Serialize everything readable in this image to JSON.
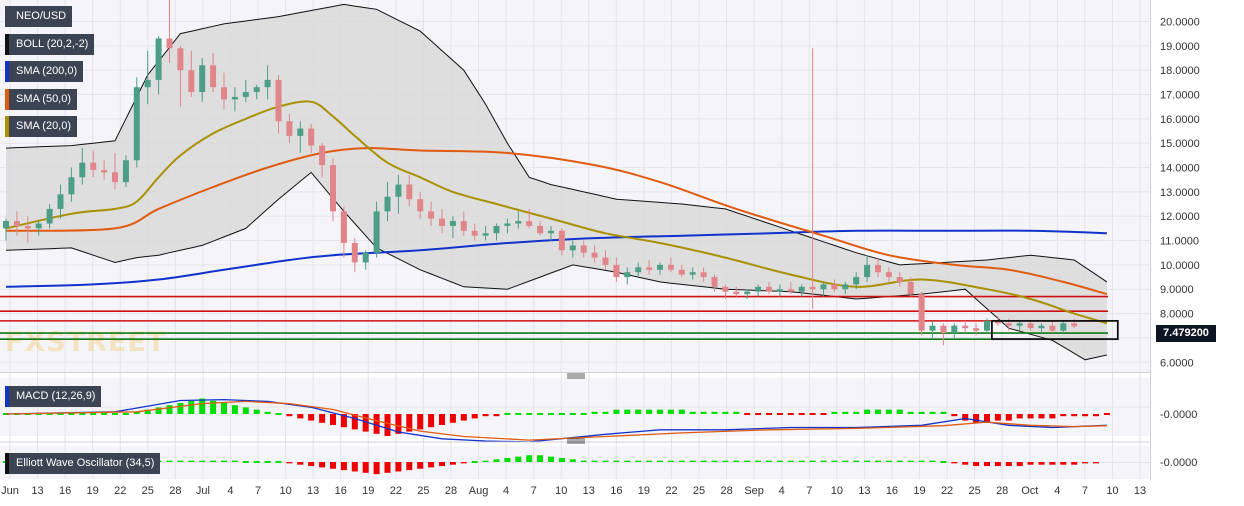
{
  "chart_data": {
    "type": "candlestick",
    "symbol": "NEO/USD",
    "watermark": "FXSTREET",
    "last_price_label": "7.479200",
    "price_axis": {
      "min": 5.6,
      "max": 20.8,
      "ticks": [
        "20.0000",
        "19.0000",
        "18.0000",
        "17.0000",
        "16.0000",
        "15.0000",
        "14.0000",
        "13.0000",
        "12.0000",
        "11.0000",
        "10.0000",
        "9.0000",
        "8.0000",
        "7.0000",
        "6.0000"
      ]
    },
    "time_axis_labels": [
      "Jun",
      "13",
      "16",
      "19",
      "22",
      "25",
      "28",
      "Jul",
      "4",
      "7",
      "10",
      "13",
      "16",
      "19",
      "22",
      "25",
      "28",
      "Aug",
      "4",
      "7",
      "10",
      "13",
      "16",
      "19",
      "22",
      "25",
      "28",
      "Sep",
      "4",
      "7",
      "10",
      "13",
      "16",
      "19",
      "22",
      "25",
      "28",
      "Oct",
      "4",
      "7",
      "10",
      "13"
    ],
    "candles": [
      [
        11.5,
        11.9,
        11.0,
        11.8
      ],
      [
        11.8,
        12.2,
        11.2,
        11.6
      ],
      [
        11.6,
        12.0,
        10.9,
        11.5
      ],
      [
        11.5,
        11.8,
        11.2,
        11.7
      ],
      [
        11.7,
        12.5,
        11.5,
        12.3
      ],
      [
        12.3,
        13.3,
        11.9,
        12.9
      ],
      [
        12.9,
        14.0,
        12.6,
        13.6
      ],
      [
        13.6,
        14.8,
        13.3,
        14.2
      ],
      [
        14.2,
        14.7,
        13.6,
        13.9
      ],
      [
        13.9,
        14.3,
        13.5,
        13.8
      ],
      [
        13.8,
        14.6,
        13.1,
        13.4
      ],
      [
        13.4,
        14.5,
        13.2,
        14.3
      ],
      [
        14.3,
        17.7,
        14.0,
        17.3
      ],
      [
        17.3,
        18.8,
        16.6,
        17.6
      ],
      [
        17.6,
        19.4,
        17.0,
        19.3
      ],
      [
        19.3,
        20.9,
        18.3,
        18.9
      ],
      [
        18.9,
        19.0,
        16.5,
        18.0
      ],
      [
        18.0,
        18.8,
        16.9,
        17.1
      ],
      [
        17.1,
        18.5,
        16.7,
        18.2
      ],
      [
        18.2,
        18.7,
        17.1,
        17.3
      ],
      [
        17.3,
        17.9,
        16.4,
        16.8
      ],
      [
        16.8,
        17.3,
        16.3,
        16.9
      ],
      [
        16.9,
        17.6,
        16.7,
        17.1
      ],
      [
        17.1,
        17.4,
        16.8,
        17.3
      ],
      [
        17.3,
        18.2,
        16.8,
        17.6
      ],
      [
        17.6,
        17.8,
        15.4,
        15.9
      ],
      [
        15.9,
        16.2,
        15.0,
        15.3
      ],
      [
        15.3,
        15.9,
        14.6,
        15.6
      ],
      [
        15.6,
        15.8,
        14.6,
        14.9
      ],
      [
        14.9,
        15.0,
        13.6,
        14.1
      ],
      [
        14.1,
        14.4,
        11.8,
        12.2
      ],
      [
        12.2,
        12.4,
        10.3,
        10.9
      ],
      [
        10.9,
        11.1,
        9.7,
        10.1
      ],
      [
        10.1,
        10.6,
        9.8,
        10.5
      ],
      [
        10.5,
        12.6,
        10.3,
        12.2
      ],
      [
        12.2,
        13.4,
        11.8,
        12.8
      ],
      [
        12.8,
        13.7,
        12.1,
        13.3
      ],
      [
        13.3,
        13.7,
        12.4,
        12.7
      ],
      [
        12.7,
        13.0,
        11.9,
        12.2
      ],
      [
        12.2,
        12.6,
        11.6,
        11.9
      ],
      [
        11.9,
        12.3,
        11.3,
        11.6
      ],
      [
        11.6,
        12.0,
        11.1,
        11.8
      ],
      [
        11.8,
        12.2,
        11.2,
        11.4
      ],
      [
        11.4,
        11.7,
        11.0,
        11.2
      ],
      [
        11.2,
        11.6,
        11.0,
        11.3
      ],
      [
        11.3,
        11.7,
        11.0,
        11.6
      ],
      [
        11.6,
        11.9,
        11.3,
        11.7
      ],
      [
        11.7,
        12.2,
        11.5,
        11.8
      ],
      [
        11.8,
        12.3,
        11.5,
        11.6
      ],
      [
        11.6,
        11.8,
        11.2,
        11.3
      ],
      [
        11.3,
        11.6,
        11.0,
        11.4
      ],
      [
        11.4,
        11.5,
        10.4,
        10.6
      ],
      [
        10.6,
        11.0,
        10.3,
        10.8
      ],
      [
        10.8,
        11.0,
        10.3,
        10.5
      ],
      [
        10.5,
        10.8,
        10.1,
        10.3
      ],
      [
        10.3,
        10.6,
        9.8,
        10.0
      ],
      [
        10.0,
        10.3,
        9.3,
        9.5
      ],
      [
        9.5,
        9.9,
        9.2,
        9.7
      ],
      [
        9.7,
        10.1,
        9.5,
        9.9
      ],
      [
        9.9,
        10.2,
        9.6,
        9.8
      ],
      [
        9.8,
        10.1,
        9.6,
        10.0
      ],
      [
        10.0,
        10.3,
        9.7,
        9.8
      ],
      [
        9.8,
        10.0,
        9.5,
        9.6
      ],
      [
        9.6,
        9.9,
        9.4,
        9.7
      ],
      [
        9.7,
        9.9,
        9.3,
        9.5
      ],
      [
        9.5,
        9.6,
        8.9,
        9.1
      ],
      [
        9.1,
        9.2,
        8.6,
        8.9
      ],
      [
        8.9,
        9.1,
        8.7,
        8.8
      ],
      [
        8.8,
        9.0,
        8.6,
        8.9
      ],
      [
        8.9,
        9.2,
        8.7,
        9.1
      ],
      [
        9.1,
        9.3,
        8.8,
        8.9
      ],
      [
        8.9,
        9.2,
        8.7,
        9.0
      ],
      [
        9.0,
        9.3,
        8.8,
        8.9
      ],
      [
        8.9,
        9.2,
        8.7,
        9.1
      ],
      [
        9.1,
        18.9,
        8.2,
        9.0
      ],
      [
        9.0,
        9.3,
        8.7,
        9.2
      ],
      [
        9.2,
        9.4,
        8.9,
        9.0
      ],
      [
        9.0,
        9.3,
        8.8,
        9.2
      ],
      [
        9.2,
        9.7,
        9.0,
        9.5
      ],
      [
        9.5,
        10.4,
        9.3,
        10.0
      ],
      [
        10.0,
        10.3,
        9.5,
        9.7
      ],
      [
        9.7,
        9.9,
        9.3,
        9.5
      ],
      [
        9.5,
        9.7,
        9.1,
        9.3
      ],
      [
        9.3,
        9.5,
        8.7,
        8.8
      ],
      [
        8.8,
        8.9,
        7.1,
        7.3
      ],
      [
        7.3,
        7.7,
        7.0,
        7.5
      ],
      [
        7.5,
        7.6,
        6.7,
        7.2
      ],
      [
        7.2,
        7.6,
        7.0,
        7.5
      ],
      [
        7.5,
        7.7,
        7.2,
        7.4
      ],
      [
        7.4,
        7.6,
        7.1,
        7.3
      ],
      [
        7.3,
        7.8,
        7.2,
        7.7
      ],
      [
        7.7,
        7.9,
        7.5,
        7.6
      ],
      [
        7.6,
        7.8,
        7.3,
        7.5
      ],
      [
        7.5,
        7.7,
        7.3,
        7.6
      ],
      [
        7.6,
        7.7,
        7.3,
        7.4
      ],
      [
        7.4,
        7.6,
        7.2,
        7.5
      ],
      [
        7.5,
        7.7,
        7.2,
        7.3
      ],
      [
        7.3,
        7.7,
        7.2,
        7.6
      ],
      [
        7.6,
        7.8,
        7.4,
        7.48
      ]
    ],
    "sma20": [
      [
        0,
        11.5
      ],
      [
        6,
        12.1
      ],
      [
        10,
        12.3
      ],
      [
        12,
        12.6
      ],
      [
        14,
        13.6
      ],
      [
        16,
        14.5
      ],
      [
        19,
        15.4
      ],
      [
        22,
        16.0
      ],
      [
        25,
        16.5
      ],
      [
        28,
        16.7
      ],
      [
        30,
        16.1
      ],
      [
        32,
        15.3
      ],
      [
        35,
        14.2
      ],
      [
        38,
        13.6
      ],
      [
        41,
        13.0
      ],
      [
        45,
        12.5
      ],
      [
        50,
        11.9
      ],
      [
        55,
        11.3
      ],
      [
        60,
        10.9
      ],
      [
        66,
        10.3
      ],
      [
        72,
        9.6
      ],
      [
        78,
        9.1
      ],
      [
        84,
        9.4
      ],
      [
        90,
        9.0
      ],
      [
        94,
        8.6
      ],
      [
        98,
        8.0
      ],
      [
        101,
        7.6
      ]
    ],
    "sma50": [
      [
        0,
        11.4
      ],
      [
        10,
        11.5
      ],
      [
        14,
        12.3
      ],
      [
        19,
        13.2
      ],
      [
        24,
        14.0
      ],
      [
        29,
        14.6
      ],
      [
        33,
        14.8
      ],
      [
        38,
        14.7
      ],
      [
        46,
        14.6
      ],
      [
        54,
        14.1
      ],
      [
        60,
        13.4
      ],
      [
        67,
        12.3
      ],
      [
        75,
        11.2
      ],
      [
        81,
        10.4
      ],
      [
        87,
        10.0
      ],
      [
        92,
        9.8
      ],
      [
        97,
        9.3
      ],
      [
        101,
        8.8
      ]
    ],
    "sma200": [
      [
        0,
        9.1
      ],
      [
        8,
        9.2
      ],
      [
        14,
        9.4
      ],
      [
        20,
        9.8
      ],
      [
        26,
        10.2
      ],
      [
        30,
        10.4
      ],
      [
        38,
        10.6
      ],
      [
        46,
        10.9
      ],
      [
        54,
        11.1
      ],
      [
        62,
        11.2
      ],
      [
        70,
        11.3
      ],
      [
        78,
        11.4
      ],
      [
        86,
        11.4
      ],
      [
        94,
        11.4
      ],
      [
        101,
        11.3
      ]
    ],
    "bb_upper": [
      [
        0,
        14.8
      ],
      [
        6,
        14.9
      ],
      [
        10,
        15.1
      ],
      [
        13,
        17.8
      ],
      [
        16,
        19.5
      ],
      [
        20,
        19.9
      ],
      [
        25,
        20.2
      ],
      [
        31,
        20.7
      ],
      [
        34,
        20.5
      ],
      [
        38,
        19.6
      ],
      [
        42,
        18.0
      ],
      [
        44,
        16.6
      ],
      [
        46,
        15.0
      ],
      [
        48,
        13.6
      ],
      [
        50,
        13.3
      ],
      [
        56,
        12.7
      ],
      [
        62,
        12.5
      ],
      [
        66,
        12.3
      ],
      [
        72,
        11.4
      ],
      [
        78,
        10.5
      ],
      [
        82,
        10.0
      ],
      [
        86,
        10.1
      ],
      [
        90,
        10.2
      ],
      [
        94,
        10.4
      ],
      [
        98,
        10.2
      ],
      [
        101,
        9.3
      ]
    ],
    "bb_lower": [
      [
        0,
        10.6
      ],
      [
        6,
        10.7
      ],
      [
        10,
        10.1
      ],
      [
        12,
        10.3
      ],
      [
        14,
        10.4
      ],
      [
        18,
        10.8
      ],
      [
        22,
        11.5
      ],
      [
        25,
        12.7
      ],
      [
        28,
        13.8
      ],
      [
        31,
        12.2
      ],
      [
        34,
        10.7
      ],
      [
        38,
        9.8
      ],
      [
        42,
        9.1
      ],
      [
        46,
        9.0
      ],
      [
        52,
        10.0
      ],
      [
        56,
        9.7
      ],
      [
        60,
        9.3
      ],
      [
        66,
        9.0
      ],
      [
        72,
        8.9
      ],
      [
        78,
        8.6
      ],
      [
        84,
        8.8
      ],
      [
        88,
        9.0
      ],
      [
        92,
        7.4
      ],
      [
        96,
        6.9
      ],
      [
        99,
        6.1
      ],
      [
        101,
        6.3
      ]
    ],
    "levels_red": [
      8.7,
      8.1,
      7.7
    ],
    "levels_green": [
      7.2,
      6.95
    ],
    "range_box": {
      "i0": 91,
      "i1": 102,
      "p_top": 7.7,
      "p_bottom": 6.95
    },
    "macd_hist": [
      0,
      0,
      0,
      0,
      0,
      0,
      0,
      0,
      0,
      0,
      0,
      0,
      1,
      2,
      3,
      4,
      5,
      6,
      7,
      6,
      5,
      4,
      3,
      2,
      1,
      0,
      -1,
      -2,
      -3,
      -4,
      -5,
      -6,
      -7,
      -8,
      -9,
      -10,
      -9,
      -8,
      -7,
      -6,
      -5,
      -4,
      -3,
      -2,
      -1,
      -1,
      0,
      0,
      0,
      0,
      0,
      0,
      0,
      0,
      1,
      1,
      2,
      2,
      2,
      2,
      2,
      2,
      2,
      1,
      1,
      1,
      1,
      1,
      0,
      0,
      0,
      0,
      0,
      0,
      0,
      0,
      1,
      1,
      1,
      2,
      2,
      2,
      2,
      1,
      1,
      1,
      1,
      -1,
      -3,
      -4,
      -4,
      -3,
      -3,
      -2,
      -2,
      -2,
      -2,
      -1,
      -1,
      -1,
      -1,
      0
    ],
    "macd_line": [
      [
        0,
        0.0
      ],
      [
        10,
        0.5
      ],
      [
        16,
        3.0
      ],
      [
        20,
        3.2
      ],
      [
        24,
        2.8
      ],
      [
        28,
        1.5
      ],
      [
        32,
        -1.0
      ],
      [
        36,
        -4.0
      ],
      [
        40,
        -5.5
      ],
      [
        44,
        -6.0
      ],
      [
        48,
        -6.2
      ],
      [
        55,
        -4.5
      ],
      [
        60,
        -3.5
      ],
      [
        66,
        -3.5
      ],
      [
        72,
        -3.0
      ],
      [
        78,
        -3.0
      ],
      [
        84,
        -2.5
      ],
      [
        88,
        -1.0
      ],
      [
        92,
        -2.5
      ],
      [
        96,
        -3.0
      ],
      [
        101,
        -2.5
      ]
    ],
    "macd_signal": [
      [
        0,
        0.0
      ],
      [
        12,
        0.5
      ],
      [
        18,
        2.3
      ],
      [
        22,
        2.8
      ],
      [
        26,
        2.3
      ],
      [
        30,
        1.0
      ],
      [
        34,
        -1.5
      ],
      [
        38,
        -3.8
      ],
      [
        42,
        -5.0
      ],
      [
        48,
        -5.8
      ],
      [
        55,
        -5.0
      ],
      [
        62,
        -4.2
      ],
      [
        70,
        -3.5
      ],
      [
        78,
        -3.2
      ],
      [
        86,
        -2.6
      ],
      [
        90,
        -1.8
      ],
      [
        94,
        -2.5
      ],
      [
        98,
        -2.8
      ],
      [
        101,
        -2.6
      ]
    ],
    "ewo_hist": [
      0,
      0,
      0,
      0,
      0,
      0,
      0,
      0,
      0,
      0,
      0,
      0,
      1,
      1,
      1,
      1,
      1,
      1,
      1,
      1,
      1,
      1,
      0,
      0,
      0,
      0,
      -1,
      -2,
      -3,
      -4,
      -5,
      -6,
      -7,
      -8,
      -9,
      -8,
      -7,
      -6,
      -5,
      -4,
      -3,
      -2,
      -1,
      0,
      1,
      2,
      3,
      4,
      5,
      5,
      4,
      3,
      2,
      1,
      1,
      1,
      1,
      1,
      1,
      1,
      1,
      1,
      1,
      1,
      1,
      1,
      1,
      1,
      1,
      1,
      1,
      1,
      1,
      1,
      1,
      1,
      1,
      1,
      1,
      1,
      1,
      1,
      1,
      1,
      1,
      1,
      0,
      -1,
      -2,
      -3,
      -3,
      -3,
      -3,
      -3,
      -2,
      -2,
      -2,
      -2,
      -2,
      -1,
      -1
    ],
    "macd_axis_label": "-0.0000",
    "ewo_axis_label": "-0.0000"
  },
  "legend": [
    {
      "label": "NEO/USD",
      "color": "#3c4453"
    },
    {
      "label": "BOLL (20,2,-2)",
      "color": "#111111"
    },
    {
      "label": "SMA (200,0)",
      "color": "#1133cc"
    },
    {
      "label": "SMA (50,0)",
      "color": "#e05a10"
    },
    {
      "label": "SMA (20,0)",
      "color": "#a89000"
    }
  ],
  "macd_legend": {
    "label": "MACD (12,26,9)",
    "color": "#1133cc"
  },
  "ewo_legend": {
    "label": "Elliott Wave Oscillator (34,5)",
    "color": "#111111"
  },
  "colors": {
    "up": "#4d9e86",
    "down": "#e0868a",
    "boll_fill": "#d9d9d9",
    "grid": "#e3e3ea",
    "level_red": "#d01010",
    "level_green": "#107a10",
    "hist_pos": "#00dd00",
    "hist_neg": "#ee0000",
    "macd": "#1133cc",
    "signal": "#e05a10"
  }
}
